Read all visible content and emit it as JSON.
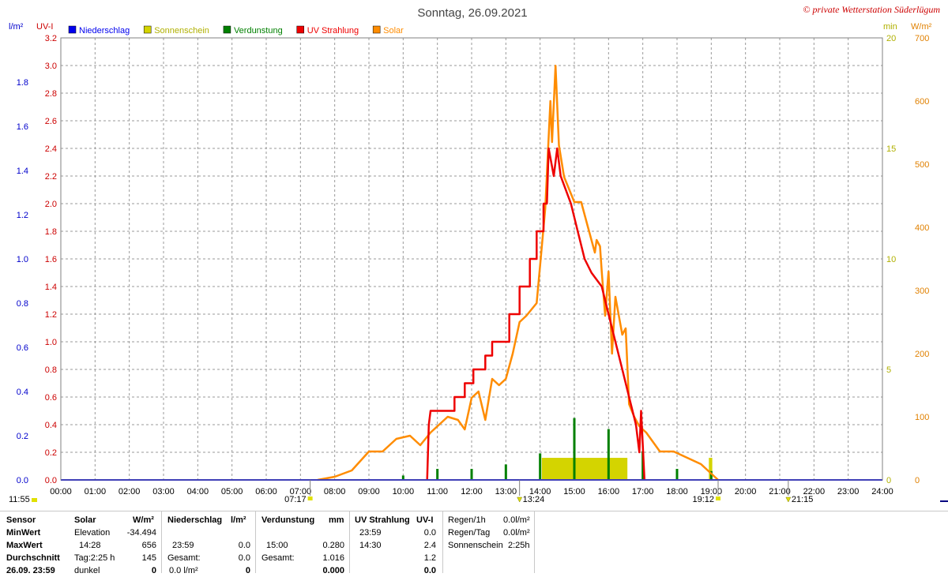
{
  "title": "Sonntag, 26.09.2021",
  "copyright": "© private Wetterstation Süderlügum",
  "axes": {
    "left_outer_label": "l/m²",
    "left_inner_label": "UV-I",
    "right_inner_label": "min",
    "right_outer_label": "W/m²",
    "left_outer_ticks": [
      "0.0",
      "0.2",
      "0.4",
      "0.6",
      "0.8",
      "1.0",
      "1.2",
      "1.4",
      "1.6",
      "1.8"
    ],
    "left_inner_ticks": [
      "0.0",
      "0.2",
      "0.4",
      "0.6",
      "0.8",
      "1.0",
      "1.2",
      "1.4",
      "1.6",
      "1.8",
      "2.0",
      "2.2",
      "2.4",
      "2.6",
      "2.8",
      "3.0",
      "3.2"
    ],
    "right_inner_ticks": [
      "0",
      "5",
      "10",
      "15",
      "20"
    ],
    "right_outer_ticks": [
      "0",
      "100",
      "200",
      "300",
      "400",
      "500",
      "600",
      "700"
    ],
    "x_ticks": [
      "00:00",
      "01:00",
      "02:00",
      "03:00",
      "04:00",
      "05:00",
      "06:00",
      "07:00",
      "08:00",
      "09:00",
      "10:00",
      "11:00",
      "12:00",
      "13:00",
      "14:00",
      "15:00",
      "16:00",
      "17:00",
      "18:00",
      "19:00",
      "20:00",
      "21:00",
      "22:00",
      "23:00",
      "24:00"
    ]
  },
  "markers": {
    "moonrise": "11:55",
    "sunrise": "07:17",
    "noon": "13:24",
    "sunset": "19:12",
    "moonset": "21:15"
  },
  "legend": [
    {
      "label": "Niederschlag",
      "color": "#0000ee"
    },
    {
      "label": "Sonnenschein",
      "color": "#d4d400"
    },
    {
      "label": "Verdunstung",
      "color": "#008000"
    },
    {
      "label": "UV Strahlung",
      "color": "#ee0000"
    },
    {
      "label": "Solar",
      "color": "#ff8c00"
    }
  ],
  "chart_data": {
    "type": "line",
    "title": "Sonntag, 26.09.2021",
    "xlim": [
      0,
      24
    ],
    "x_unit": "hours",
    "series": [
      {
        "name": "Solar",
        "unit": "W/m²",
        "axis": "right_outer",
        "ylim": [
          0,
          700
        ],
        "color": "#ff8c00",
        "points": [
          [
            7.5,
            0
          ],
          [
            8.0,
            5
          ],
          [
            8.5,
            15
          ],
          [
            9.0,
            45
          ],
          [
            9.4,
            45
          ],
          [
            9.8,
            65
          ],
          [
            10.2,
            70
          ],
          [
            10.5,
            55
          ],
          [
            10.8,
            75
          ],
          [
            11.3,
            100
          ],
          [
            11.6,
            95
          ],
          [
            11.8,
            80
          ],
          [
            12.0,
            130
          ],
          [
            12.2,
            140
          ],
          [
            12.4,
            95
          ],
          [
            12.6,
            160
          ],
          [
            12.8,
            150
          ],
          [
            13.0,
            160
          ],
          [
            13.2,
            200
          ],
          [
            13.4,
            250
          ],
          [
            13.6,
            260
          ],
          [
            13.9,
            280
          ],
          [
            14.0,
            340
          ],
          [
            14.15,
            430
          ],
          [
            14.3,
            600
          ],
          [
            14.35,
            535
          ],
          [
            14.45,
            656
          ],
          [
            14.55,
            530
          ],
          [
            14.7,
            480
          ],
          [
            15.0,
            440
          ],
          [
            15.2,
            440
          ],
          [
            15.4,
            400
          ],
          [
            15.6,
            360
          ],
          [
            15.65,
            380
          ],
          [
            15.75,
            370
          ],
          [
            15.8,
            330
          ],
          [
            15.9,
            260
          ],
          [
            16.0,
            330
          ],
          [
            16.1,
            200
          ],
          [
            16.2,
            290
          ],
          [
            16.4,
            230
          ],
          [
            16.5,
            240
          ],
          [
            16.6,
            120
          ],
          [
            16.75,
            100
          ],
          [
            16.9,
            85
          ],
          [
            17.1,
            75
          ],
          [
            17.5,
            45
          ],
          [
            17.9,
            45
          ],
          [
            18.3,
            35
          ],
          [
            18.7,
            25
          ],
          [
            19.0,
            10
          ],
          [
            19.2,
            0
          ]
        ]
      },
      {
        "name": "UV Strahlung",
        "unit": "UV-I",
        "axis": "left_inner",
        "ylim": [
          0,
          3.2
        ],
        "color": "#ee0000",
        "points": [
          [
            10.7,
            0
          ],
          [
            10.75,
            0.4
          ],
          [
            10.8,
            0.5
          ],
          [
            11.5,
            0.5
          ],
          [
            11.5,
            0.6
          ],
          [
            11.8,
            0.6
          ],
          [
            11.8,
            0.7
          ],
          [
            12.05,
            0.7
          ],
          [
            12.05,
            0.8
          ],
          [
            12.4,
            0.8
          ],
          [
            12.4,
            0.9
          ],
          [
            12.6,
            0.9
          ],
          [
            12.6,
            1.0
          ],
          [
            13.1,
            1.0
          ],
          [
            13.1,
            1.2
          ],
          [
            13.4,
            1.2
          ],
          [
            13.4,
            1.4
          ],
          [
            13.7,
            1.4
          ],
          [
            13.7,
            1.6
          ],
          [
            13.9,
            1.6
          ],
          [
            13.9,
            1.8
          ],
          [
            14.1,
            1.8
          ],
          [
            14.1,
            2.0
          ],
          [
            14.2,
            2.0
          ],
          [
            14.25,
            2.4
          ],
          [
            14.4,
            2.2
          ],
          [
            14.5,
            2.4
          ],
          [
            14.6,
            2.2
          ],
          [
            14.9,
            2.0
          ],
          [
            15.1,
            1.8
          ],
          [
            15.3,
            1.6
          ],
          [
            15.5,
            1.5
          ],
          [
            15.8,
            1.4
          ],
          [
            16.0,
            1.2
          ],
          [
            16.2,
            1.0
          ],
          [
            16.4,
            0.8
          ],
          [
            16.6,
            0.6
          ],
          [
            16.8,
            0.4
          ],
          [
            16.9,
            0.2
          ],
          [
            16.95,
            0.5
          ],
          [
            17.05,
            0
          ]
        ]
      },
      {
        "name": "Sonnenschein",
        "unit": "min",
        "axis": "right_inner",
        "ylim": [
          0,
          20
        ],
        "color": "#d4d400",
        "bars": [
          [
            14.05,
            16.55,
            1.0
          ],
          [
            18.93,
            19.03,
            1.0
          ]
        ]
      },
      {
        "name": "Verdunstung",
        "unit": "mm",
        "axis": "left_outer",
        "ylim": [
          0,
          2.0
        ],
        "color": "#008000",
        "bars": [
          [
            10.0,
            0.02
          ],
          [
            11.0,
            0.05
          ],
          [
            12.0,
            0.05
          ],
          [
            13.0,
            0.07
          ],
          [
            14.0,
            0.12
          ],
          [
            15.0,
            0.28
          ],
          [
            16.0,
            0.23
          ],
          [
            17.0,
            0.13
          ],
          [
            18.0,
            0.05
          ],
          [
            19.0,
            0.04
          ]
        ]
      },
      {
        "name": "Niederschlag",
        "unit": "l/m²",
        "axis": "left_outer",
        "ylim": [
          0,
          2.0
        ],
        "color": "#0000ee",
        "bars": []
      }
    ]
  },
  "table": {
    "rowlabels": {
      "sensor": "Sensor",
      "min": "MinWert",
      "max": "MaxWert",
      "avg": "Durchschnitt",
      "date": "26.09. 23:59"
    },
    "solar": {
      "header": "Solar",
      "unit": "W/m²",
      "r1a": "Elevation",
      "r1b": "-34.494",
      "r2a": "14:28",
      "r2b": "656",
      "r3a": "Tag:2:25 h",
      "r3b": "145",
      "r4a": "dunkel",
      "r4b": "0"
    },
    "niederschlag": {
      "header": "Niederschlag",
      "unit": "l/m²",
      "r2a": "23:59",
      "r2b": "0.0",
      "r3a": "Gesamt:",
      "r3b": "0.0",
      "r4a": "0.0 l/m²",
      "r4b": "0"
    },
    "verdunstung": {
      "header": "Verdunstung",
      "unit": "mm",
      "r2a": "15:00",
      "r2b": "0.280",
      "r3a": "Gesamt:",
      "r3b": "1.016",
      "r4b": "0.000"
    },
    "uv": {
      "header": "UV Strahlung",
      "unit": "UV-I",
      "r1a": "23:59",
      "r1b": "0.0",
      "r2a": "14:30",
      "r2b": "2.4",
      "r3b": "1.2",
      "r4b": "0.0"
    },
    "regen": {
      "l1": "Regen/1h",
      "v1": "0.0l/m²",
      "l2": "Regen/Tag",
      "v2": "0.0l/m²",
      "l3": "Sonnenschein",
      "v3": "2:25h"
    }
  }
}
